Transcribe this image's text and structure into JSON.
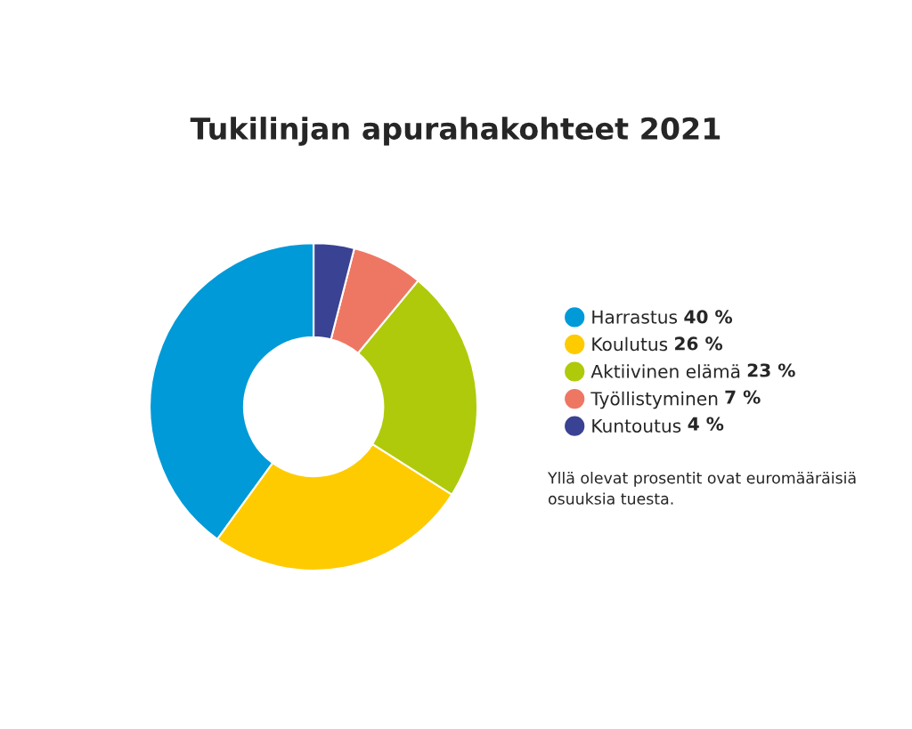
{
  "chart_data": {
    "type": "donut",
    "title": "Tukilinjan apurahakohteet 2021",
    "categories": [
      "Harrastus",
      "Koulutus",
      "Aktiivinen elämä",
      "Työllistyminen",
      "Kuntoutus"
    ],
    "values": [
      40,
      26,
      23,
      7,
      4
    ],
    "value_labels": [
      "40 %",
      "26 %",
      "23 %",
      "7 %",
      "4 %"
    ],
    "colors": [
      "#019ad8",
      "#fecb00",
      "#afca0b",
      "#ee7763",
      "#3a4294"
    ],
    "legend": "right",
    "annotations": [
      "Yllä olevat prosentit ovat euromääräisiä osuuksia tuesta."
    ]
  }
}
